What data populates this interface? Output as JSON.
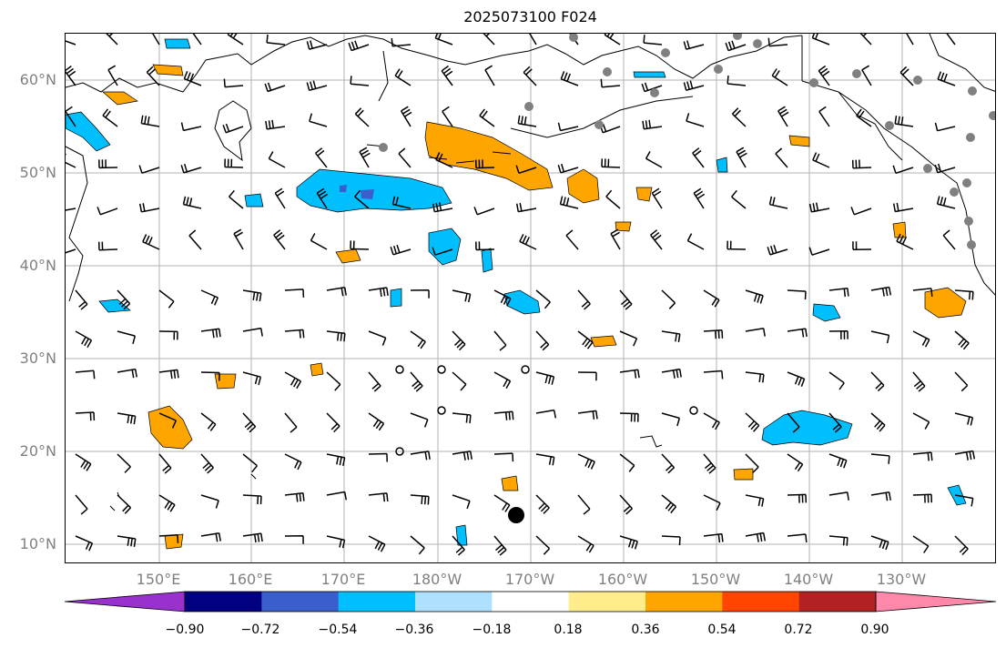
{
  "title": "2025073100 F024",
  "map": {
    "projection": "cylindrical",
    "lon_range_deg_east": [
      140,
      241
    ],
    "lat_range_deg_north": [
      8,
      65
    ],
    "gridlines": true,
    "lat_labels": [
      "60°N",
      "50°N",
      "40°N",
      "30°N",
      "20°N",
      "10°N"
    ],
    "lon_labels": [
      "150°E",
      "160°E",
      "170°E",
      "180°W",
      "170°W",
      "160°W",
      "150°W",
      "140°W",
      "130°W"
    ],
    "gray_station_dots": 22,
    "large_black_marker": "black-dot-icon"
  },
  "colorbar": {
    "ticks": [
      "−0.90",
      "−0.72",
      "−0.54",
      "−0.36",
      "−0.18",
      "0.18",
      "0.36",
      "0.54",
      "0.72",
      "0.90"
    ],
    "colors": [
      "#9932CC",
      "#000080",
      "#3A5FCD",
      "#00BFFF",
      "#ADE1FF",
      "#FFFFFF",
      "#FFEC8B",
      "#FFA500",
      "#FF4500",
      "#B22222",
      "#FF88AA"
    ],
    "extend": "both"
  },
  "colors": {
    "grid": "#b3b3b3",
    "coast": "#000000",
    "station_dot": "#808080"
  }
}
